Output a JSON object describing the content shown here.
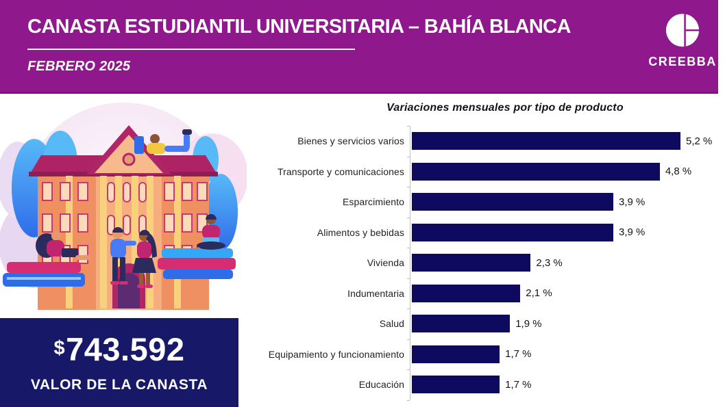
{
  "header": {
    "title": "CANASTA ESTUDIANTIL UNIVERSITARIA – BAHÍA BLANCA",
    "subtitle": "FEBRERO 2025",
    "logo_text": "CREEBBA"
  },
  "basket": {
    "currency_symbol": "$",
    "value": "743.592",
    "label": "VALOR DE LA CANASTA"
  },
  "chart_data": {
    "type": "bar",
    "orientation": "horizontal",
    "title": "Variaciones mensuales por tipo de producto",
    "categories": [
      "Bienes y servicios varios",
      "Transporte y comunicaciones",
      "Esparcimiento",
      "Alimentos y bebidas",
      "Vivienda",
      "Indumentaria",
      "Salud",
      "Equipamiento y funcionamiento",
      "Educación"
    ],
    "values": [
      5.2,
      4.8,
      3.9,
      3.9,
      2.3,
      2.1,
      1.9,
      1.7,
      1.7
    ],
    "value_labels": [
      "5,2 %",
      "4,8 %",
      "3,9 %",
      "3,9 %",
      "2,3 %",
      "2,1 %",
      "1,9 %",
      "1,7 %",
      "1,7 %"
    ],
    "xlabel": "",
    "ylabel": "",
    "xlim": [
      0,
      5.5
    ],
    "grid": false,
    "legend": false,
    "bar_color": "#0E0A60",
    "axis_color": "#BFBFBF"
  },
  "colors": {
    "header_bg": "#8E188C",
    "value_box_bg": "#181869",
    "bar": "#0E0A60",
    "text_light": "#FFFFFF",
    "chart_text": "#141414"
  }
}
